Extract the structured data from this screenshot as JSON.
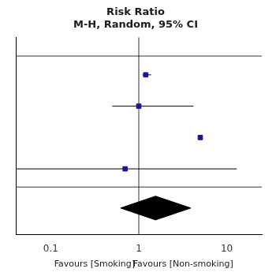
{
  "chart_data": {
    "type": "forest",
    "title": [
      "Risk Ratio",
      "M-H, Random, 95% CI"
    ],
    "log": "x",
    "xlim": [
      0.04,
      25
    ],
    "xticks": [
      0.1,
      1,
      10
    ],
    "ylim": [
      -1.1,
      5.2
    ],
    "tick_labels": "x",
    "grid": false,
    "annotations": [
      "Favours [Smoking]",
      "Favours [Non-smoking]"
    ],
    "studies": {
      "y": [
        4,
        3,
        2,
        1
      ],
      "values": [
        1.2,
        1.0,
        5.0,
        0.7
      ],
      "ci_low": [
        1.1,
        0.5,
        5.0,
        0.04
      ],
      "ci_high": [
        1.38,
        4.2,
        5.0,
        13.0
      ],
      "color": "#1515a0"
    },
    "pooled": {
      "value": 1.55,
      "ci_low": 0.62,
      "ci_high": 3.9,
      "y": -0.25,
      "height": 0.38,
      "color": "#000000"
    },
    "reference_line": 1,
    "separators": [
      4.6,
      0.42
    ],
    "line_color": "#000000"
  }
}
